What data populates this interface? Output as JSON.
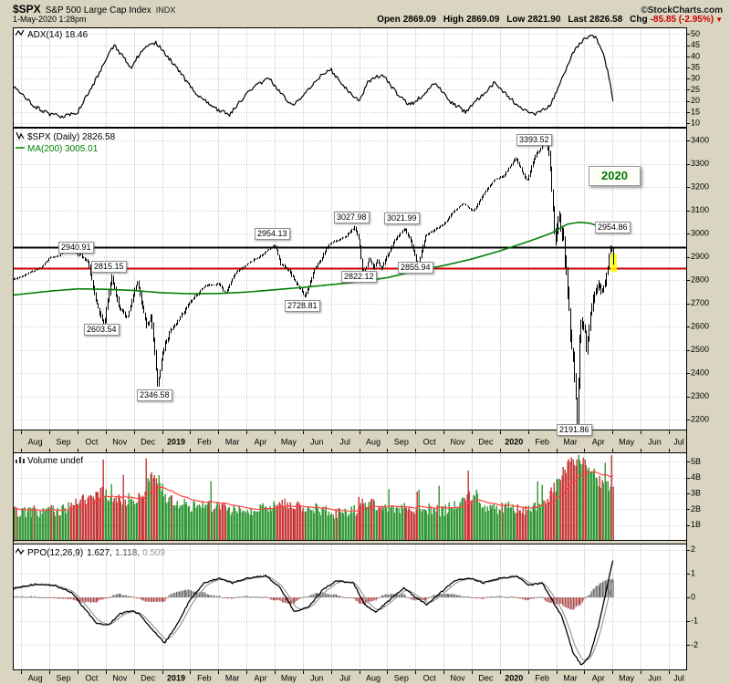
{
  "header": {
    "symbol": "$SPX",
    "name": "S&P 500 Large Cap Index",
    "exchange": "INDX",
    "timestamp": "1-May-2020 1:28pm",
    "copyright": "©StockCharts.com",
    "quote": {
      "open_label": "Open",
      "open": "2869.09",
      "high_label": "High",
      "high": "2869.09",
      "low_label": "Low",
      "low": "2821.90",
      "last_label": "Last",
      "last": "2826.58",
      "chg_label": "Chg",
      "chg": "-85.85 (-2.95%)",
      "chg_arrow": "▼"
    }
  },
  "annotations": [
    {
      "text": "2940.91",
      "kind": "level"
    },
    {
      "text": "2815.15",
      "kind": "level"
    },
    {
      "text": "2603.54",
      "kind": "level"
    },
    {
      "text": "2346.58",
      "kind": "level"
    },
    {
      "text": "2954.13",
      "kind": "level"
    },
    {
      "text": "2728.81",
      "kind": "level"
    },
    {
      "text": "3027.98",
      "kind": "level"
    },
    {
      "text": "2822.12",
      "kind": "level"
    },
    {
      "text": "3021.99",
      "kind": "level"
    },
    {
      "text": "2855.94",
      "kind": "level"
    },
    {
      "text": "3393.52",
      "kind": "level"
    },
    {
      "text": "2954.86",
      "kind": "level"
    },
    {
      "text": "2191.86",
      "kind": "level"
    },
    {
      "text": "2020",
      "kind": "callout"
    }
  ],
  "x_axis": {
    "months": [
      "Aug",
      "Sep",
      "Oct",
      "Nov",
      "Dec",
      "2019",
      "Feb",
      "Mar",
      "Apr",
      "May",
      "Jun",
      "Jul",
      "Aug",
      "Sep",
      "Oct",
      "Nov",
      "Dec",
      "2020",
      "Feb",
      "Mar",
      "Apr",
      "May",
      "Jun",
      "Jul"
    ],
    "bold": [
      5,
      17
    ],
    "lead": 0.3,
    "total": 23.95,
    "data_end": 21.03,
    "days_per_month": 21
  },
  "chart_data": [
    {
      "name": "adx",
      "type": "line",
      "label": "ADX(14) 18.46",
      "last": 18.46,
      "ylim": [
        8,
        53
      ],
      "yticks": [
        10,
        15,
        20,
        25,
        30,
        35,
        40,
        45,
        50
      ],
      "anchors": [
        [
          -0.3,
          26
        ],
        [
          0,
          24
        ],
        [
          0.4,
          18
        ],
        [
          1.0,
          14
        ],
        [
          1.5,
          13
        ],
        [
          2.0,
          15
        ],
        [
          2.5,
          26
        ],
        [
          3.0,
          38
        ],
        [
          3.3,
          45
        ],
        [
          3.6,
          40
        ],
        [
          3.9,
          35
        ],
        [
          4.3,
          43
        ],
        [
          4.8,
          46
        ],
        [
          5.2,
          40
        ],
        [
          5.8,
          30
        ],
        [
          6.3,
          22
        ],
        [
          7.0,
          16
        ],
        [
          7.4,
          14
        ],
        [
          7.8,
          20
        ],
        [
          8.3,
          27
        ],
        [
          8.8,
          30
        ],
        [
          9.2,
          24
        ],
        [
          9.6,
          18
        ],
        [
          10.0,
          22
        ],
        [
          10.5,
          30
        ],
        [
          11.0,
          34
        ],
        [
          11.5,
          26
        ],
        [
          12.0,
          20
        ],
        [
          12.3,
          28
        ],
        [
          12.8,
          32
        ],
        [
          13.3,
          24
        ],
        [
          13.8,
          18
        ],
        [
          14.2,
          22
        ],
        [
          14.7,
          28
        ],
        [
          15.2,
          20
        ],
        [
          15.8,
          15
        ],
        [
          16.3,
          22
        ],
        [
          16.8,
          28
        ],
        [
          17.3,
          22
        ],
        [
          17.8,
          16
        ],
        [
          18.3,
          14
        ],
        [
          18.8,
          18
        ],
        [
          19.2,
          30
        ],
        [
          19.6,
          42
        ],
        [
          20.0,
          48
        ],
        [
          20.3,
          50
        ],
        [
          20.6,
          44
        ],
        [
          20.9,
          30
        ],
        [
          21.03,
          18.46
        ]
      ]
    },
    {
      "name": "price",
      "type": "ohlc",
      "label": "$SPX (Daily) 2826.58",
      "ma_label": "MA(200) 3005.01",
      "last": 2826.58,
      "ma_last": 3005.01,
      "ylim": [
        2153,
        3455
      ],
      "yticks": [
        2200,
        2300,
        2400,
        2500,
        2600,
        2700,
        2800,
        2900,
        3000,
        3100,
        3200,
        3300,
        3400
      ],
      "hlines": [
        {
          "value": 2940.91,
          "color": "#000000",
          "width": 2
        },
        {
          "value": 2850,
          "color": "#cc0000",
          "width": 2
        }
      ],
      "close_anchors": [
        [
          -0.3,
          2802
        ],
        [
          0,
          2816
        ],
        [
          0.7,
          2853
        ],
        [
          1.0,
          2896
        ],
        [
          1.35,
          2904
        ],
        [
          1.68,
          2940.91
        ],
        [
          2.1,
          2905
        ],
        [
          2.35,
          2880
        ],
        [
          2.65,
          2705
        ],
        [
          2.93,
          2603.54
        ],
        [
          3.2,
          2815.15
        ],
        [
          3.45,
          2690
        ],
        [
          3.75,
          2632
        ],
        [
          4.1,
          2790
        ],
        [
          4.45,
          2600
        ],
        [
          4.6,
          2650
        ],
        [
          4.83,
          2346.58
        ],
        [
          5.05,
          2510
        ],
        [
          5.3,
          2582
        ],
        [
          5.6,
          2635
        ],
        [
          6.0,
          2706
        ],
        [
          6.5,
          2775
        ],
        [
          7.0,
          2784
        ],
        [
          7.25,
          2743
        ],
        [
          7.6,
          2832
        ],
        [
          8.0,
          2867
        ],
        [
          8.5,
          2905
        ],
        [
          9.0,
          2954.13
        ],
        [
          9.2,
          2870
        ],
        [
          9.5,
          2840
        ],
        [
          9.75,
          2790
        ],
        [
          10.07,
          2728.81
        ],
        [
          10.4,
          2845
        ],
        [
          10.65,
          2890
        ],
        [
          10.9,
          2950
        ],
        [
          11.1,
          2964
        ],
        [
          11.5,
          2985
        ],
        [
          11.83,
          3027.98
        ],
        [
          12.0,
          2960
        ],
        [
          12.13,
          2822.12
        ],
        [
          12.35,
          2890
        ],
        [
          12.5,
          2847
        ],
        [
          12.65,
          2888
        ],
        [
          12.78,
          2847
        ],
        [
          13.0,
          2910
        ],
        [
          13.3,
          2978
        ],
        [
          13.6,
          3021.99
        ],
        [
          13.85,
          2962
        ],
        [
          14.07,
          2855.94
        ],
        [
          14.35,
          2990
        ],
        [
          14.6,
          3010
        ],
        [
          15.0,
          3040
        ],
        [
          15.35,
          3095
        ],
        [
          15.7,
          3130
        ],
        [
          16.05,
          3093
        ],
        [
          16.4,
          3170
        ],
        [
          16.8,
          3230
        ],
        [
          17.1,
          3246
        ],
        [
          17.55,
          3325
        ],
        [
          17.95,
          3225
        ],
        [
          18.2,
          3320
        ],
        [
          18.45,
          3370
        ],
        [
          18.6,
          3393.52
        ],
        [
          18.75,
          3335
        ],
        [
          18.95,
          2954
        ],
        [
          19.1,
          3090
        ],
        [
          19.25,
          2972
        ],
        [
          19.4,
          2741
        ],
        [
          19.55,
          2480
        ],
        [
          19.65,
          2386
        ],
        [
          19.73,
          2191.86
        ],
        [
          19.85,
          2630
        ],
        [
          20.0,
          2585
        ],
        [
          20.07,
          2488
        ],
        [
          20.2,
          2650
        ],
        [
          20.35,
          2750
        ],
        [
          20.5,
          2790
        ],
        [
          20.63,
          2736
        ],
        [
          20.8,
          2837
        ],
        [
          20.93,
          2954.86
        ],
        [
          21.0,
          2912
        ],
        [
          21.03,
          2826.58
        ]
      ],
      "volatility_anchors": [
        [
          -0.3,
          5
        ],
        [
          1.5,
          4
        ],
        [
          2.3,
          12
        ],
        [
          3.0,
          16
        ],
        [
          4.0,
          15
        ],
        [
          4.9,
          20
        ],
        [
          5.5,
          10
        ],
        [
          6.5,
          7
        ],
        [
          8.5,
          5
        ],
        [
          9.3,
          8
        ],
        [
          10.0,
          8
        ],
        [
          11.5,
          5
        ],
        [
          12.2,
          11
        ],
        [
          13.5,
          6
        ],
        [
          14.2,
          8
        ],
        [
          15.5,
          4
        ],
        [
          17.5,
          6
        ],
        [
          18.6,
          9
        ],
        [
          19.0,
          28
        ],
        [
          19.6,
          45
        ],
        [
          20.1,
          32
        ],
        [
          20.6,
          20
        ],
        [
          21.03,
          16
        ]
      ],
      "ma_anchors": [
        [
          -0.3,
          2735
        ],
        [
          1,
          2752
        ],
        [
          2,
          2762
        ],
        [
          3,
          2760
        ],
        [
          4,
          2755
        ],
        [
          5,
          2745
        ],
        [
          6,
          2741
        ],
        [
          7,
          2742
        ],
        [
          8,
          2748
        ],
        [
          9,
          2758
        ],
        [
          10,
          2768
        ],
        [
          11,
          2780
        ],
        [
          12,
          2792
        ],
        [
          13,
          2810
        ],
        [
          14,
          2838
        ],
        [
          15,
          2862
        ],
        [
          16,
          2890
        ],
        [
          17,
          2925
        ],
        [
          18,
          2965
        ],
        [
          18.8,
          3000
        ],
        [
          19.4,
          3040
        ],
        [
          19.8,
          3048
        ],
        [
          20.2,
          3044
        ],
        [
          20.6,
          3028
        ],
        [
          21.03,
          3005.01
        ]
      ]
    },
    {
      "name": "volume",
      "type": "bar",
      "label": "Volume undef",
      "ylim": [
        0,
        5.6
      ],
      "yticks": [
        1,
        2,
        3,
        4,
        5
      ],
      "ytick_suffix": "B",
      "anchors": [
        [
          -0.3,
          1.8
        ],
        [
          0.5,
          1.8
        ],
        [
          1.5,
          2.0
        ],
        [
          2.2,
          2.6
        ],
        [
          2.9,
          3.1
        ],
        [
          3.5,
          2.5
        ],
        [
          4.3,
          2.8
        ],
        [
          4.6,
          4.2
        ],
        [
          4.85,
          3.9
        ],
        [
          5.2,
          2.6
        ],
        [
          6,
          2.2
        ],
        [
          7,
          2.1
        ],
        [
          8,
          1.9
        ],
        [
          9.3,
          2.3
        ],
        [
          10,
          2.2
        ],
        [
          11,
          1.8
        ],
        [
          11.9,
          1.9
        ],
        [
          12.2,
          2.5
        ],
        [
          13,
          1.9
        ],
        [
          14.1,
          2.1
        ],
        [
          15,
          1.9
        ],
        [
          16.1,
          3.0
        ],
        [
          16.5,
          2.0
        ],
        [
          17.3,
          2.1
        ],
        [
          18.0,
          1.9
        ],
        [
          18.7,
          2.7
        ],
        [
          19.0,
          3.6
        ],
        [
          19.5,
          5.0
        ],
        [
          19.8,
          5.2
        ],
        [
          20.2,
          4.5
        ],
        [
          20.6,
          3.6
        ],
        [
          21.03,
          3.3
        ]
      ]
    },
    {
      "name": "ppo",
      "type": "line",
      "label": "PPO(12,26,9)",
      "v1": "1.627,",
      "v2": "1.118,",
      "v3": "0.509",
      "ylim": [
        -3.05,
        2.25
      ],
      "yticks": [
        -2,
        -1,
        0,
        1,
        2
      ],
      "anchors": [
        [
          -0.3,
          0.35
        ],
        [
          0,
          0.45
        ],
        [
          0.5,
          0.55
        ],
        [
          1.2,
          0.5
        ],
        [
          1.8,
          0.2
        ],
        [
          2.2,
          -0.4
        ],
        [
          2.7,
          -1.1
        ],
        [
          3.1,
          -1.15
        ],
        [
          3.5,
          -0.7
        ],
        [
          3.9,
          -0.55
        ],
        [
          4.2,
          -0.7
        ],
        [
          4.7,
          -1.4
        ],
        [
          5.1,
          -1.9
        ],
        [
          5.5,
          -1.2
        ],
        [
          6.0,
          -0.1
        ],
        [
          6.5,
          0.6
        ],
        [
          7.0,
          0.8
        ],
        [
          7.5,
          0.6
        ],
        [
          8.0,
          0.8
        ],
        [
          8.7,
          0.9
        ],
        [
          9.2,
          0.4
        ],
        [
          9.7,
          -0.6
        ],
        [
          10.2,
          -0.4
        ],
        [
          10.7,
          0.3
        ],
        [
          11.2,
          0.7
        ],
        [
          11.8,
          0.6
        ],
        [
          12.2,
          -0.3
        ],
        [
          12.6,
          -0.6
        ],
        [
          13.1,
          -0.1
        ],
        [
          13.6,
          0.4
        ],
        [
          14.0,
          0.0
        ],
        [
          14.4,
          -0.3
        ],
        [
          14.9,
          0.2
        ],
        [
          15.4,
          0.7
        ],
        [
          16.0,
          0.8
        ],
        [
          16.4,
          0.6
        ],
        [
          17.0,
          0.8
        ],
        [
          17.6,
          0.9
        ],
        [
          18.0,
          0.5
        ],
        [
          18.5,
          0.6
        ],
        [
          18.9,
          -0.2
        ],
        [
          19.2,
          -0.8
        ],
        [
          19.6,
          -2.3
        ],
        [
          19.9,
          -2.85
        ],
        [
          20.2,
          -2.4
        ],
        [
          20.5,
          -1.2
        ],
        [
          20.8,
          0.4
        ],
        [
          21.03,
          1.627
        ]
      ]
    }
  ]
}
